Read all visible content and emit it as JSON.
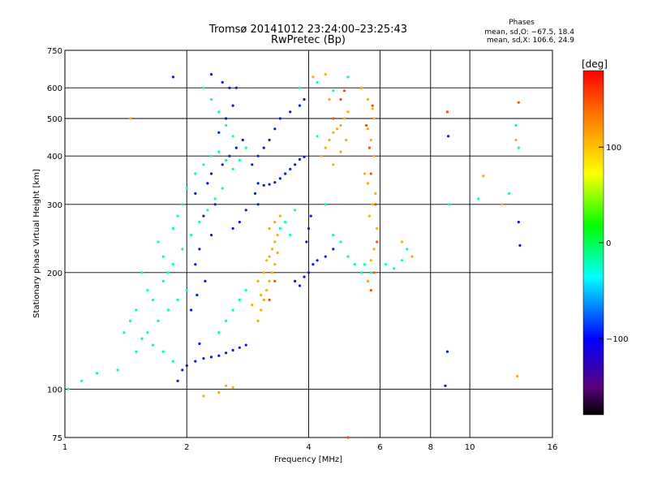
{
  "chart_data": {
    "type": "scatter",
    "title": "Tromsø 20141012 23:24:00–23:25:43",
    "subtitle": "RwPretec (Bp)",
    "xlabel": "Frequency [MHz]",
    "ylabel": "Stationary phase Virtual Height [km]",
    "x_scale": "log",
    "y_scale": "log",
    "xlim": [
      1,
      16
    ],
    "ylim": [
      75,
      750
    ],
    "x_ticks": [
      "1",
      "2",
      "4",
      "6",
      "8",
      "10",
      "16"
    ],
    "y_ticks": [
      "75",
      "100",
      "200",
      "300",
      "400",
      "500",
      "600",
      "750"
    ],
    "grid": true,
    "legend_position": "top-right",
    "phases_legend": {
      "title": "Phases",
      "o_line": "mean, sd,O: −67.5, 18.4",
      "x_line": "mean, sd,X: 106.6, 24.9"
    },
    "colorbar": {
      "label": "[deg]",
      "ticks": [
        "100",
        "0",
        "−100"
      ],
      "range": [
        -180,
        180
      ]
    },
    "series": [
      {
        "color_value": -95,
        "points": [
          [
            1.9,
            105
          ],
          [
            1.95,
            112
          ],
          [
            2.0,
            115
          ],
          [
            2.1,
            118
          ],
          [
            2.2,
            120
          ],
          [
            2.3,
            121
          ],
          [
            2.4,
            122
          ],
          [
            2.5,
            124
          ],
          [
            2.6,
            126
          ],
          [
            2.7,
            128
          ],
          [
            2.8,
            130
          ],
          [
            2.15,
            131
          ],
          [
            2.05,
            160
          ],
          [
            2.12,
            175
          ],
          [
            2.22,
            190
          ],
          [
            2.1,
            210
          ],
          [
            2.15,
            230
          ],
          [
            2.3,
            250
          ],
          [
            2.2,
            280
          ],
          [
            2.35,
            300
          ],
          [
            2.1,
            320
          ],
          [
            2.25,
            340
          ],
          [
            2.3,
            360
          ],
          [
            2.45,
            380
          ],
          [
            2.55,
            400
          ],
          [
            2.65,
            420
          ],
          [
            2.75,
            440
          ],
          [
            2.4,
            460
          ],
          [
            2.5,
            500
          ],
          [
            2.6,
            540
          ],
          [
            2.55,
            600
          ],
          [
            2.45,
            620
          ],
          [
            3.0,
            340
          ],
          [
            3.1,
            336
          ],
          [
            3.2,
            338
          ],
          [
            3.3,
            342
          ],
          [
            3.4,
            350
          ],
          [
            3.5,
            360
          ],
          [
            3.6,
            370
          ],
          [
            3.7,
            380
          ],
          [
            3.8,
            392
          ],
          [
            3.9,
            398
          ],
          [
            2.9,
            380
          ],
          [
            3.0,
            400
          ],
          [
            3.1,
            420
          ],
          [
            3.2,
            440
          ],
          [
            3.3,
            470
          ],
          [
            3.4,
            500
          ],
          [
            3.6,
            520
          ],
          [
            3.8,
            540
          ],
          [
            3.9,
            560
          ],
          [
            4.0,
            200
          ],
          [
            4.1,
            210
          ],
          [
            4.2,
            215
          ],
          [
            4.4,
            220
          ],
          [
            4.6,
            230
          ],
          [
            4.0,
            260
          ],
          [
            4.05,
            280
          ],
          [
            3.7,
            190
          ],
          [
            3.8,
            185
          ],
          [
            3.9,
            195
          ],
          [
            3.95,
            240
          ],
          [
            3.0,
            300
          ],
          [
            2.7,
            270
          ],
          [
            2.6,
            260
          ],
          [
            2.8,
            290
          ],
          [
            2.95,
            320
          ],
          [
            1.85,
            640
          ],
          [
            2.3,
            650
          ],
          [
            2.65,
            600
          ],
          [
            8.8,
            125
          ],
          [
            8.7,
            102
          ],
          [
            8.85,
            450
          ],
          [
            13.2,
            270
          ],
          [
            13.3,
            235
          ]
        ]
      },
      {
        "color_value": -20,
        "points": [
          [
            1.02,
            100
          ],
          [
            1.1,
            105
          ],
          [
            1.2,
            110
          ],
          [
            1.35,
            112
          ],
          [
            1.5,
            125
          ],
          [
            1.6,
            140
          ],
          [
            1.7,
            150
          ],
          [
            1.8,
            160
          ],
          [
            1.9,
            170
          ],
          [
            2.0,
            180
          ],
          [
            1.8,
            200
          ],
          [
            1.75,
            220
          ],
          [
            1.7,
            240
          ],
          [
            1.85,
            260
          ],
          [
            1.9,
            280
          ],
          [
            1.95,
            300
          ],
          [
            2.0,
            330
          ],
          [
            2.1,
            360
          ],
          [
            2.2,
            380
          ],
          [
            2.3,
            400
          ],
          [
            2.4,
            410
          ],
          [
            2.5,
            390
          ],
          [
            2.6,
            370
          ],
          [
            2.7,
            390
          ],
          [
            2.8,
            420
          ],
          [
            2.6,
            450
          ],
          [
            2.5,
            480
          ],
          [
            2.4,
            520
          ],
          [
            2.3,
            560
          ],
          [
            2.2,
            600
          ],
          [
            1.6,
            180
          ],
          [
            1.55,
            200
          ],
          [
            1.65,
            170
          ],
          [
            1.75,
            190
          ],
          [
            1.85,
            210
          ],
          [
            1.95,
            230
          ],
          [
            2.05,
            250
          ],
          [
            2.15,
            270
          ],
          [
            2.25,
            290
          ],
          [
            2.35,
            310
          ],
          [
            2.45,
            330
          ],
          [
            1.5,
            160
          ],
          [
            1.45,
            150
          ],
          [
            1.4,
            140
          ],
          [
            1.55,
            135
          ],
          [
            1.65,
            130
          ],
          [
            1.75,
            125
          ],
          [
            1.85,
            118
          ],
          [
            2.4,
            140
          ],
          [
            2.5,
            150
          ],
          [
            2.6,
            160
          ],
          [
            2.7,
            170
          ],
          [
            2.8,
            180
          ],
          [
            3.4,
            260
          ],
          [
            3.5,
            270
          ],
          [
            3.6,
            250
          ],
          [
            3.7,
            290
          ],
          [
            4.2,
            450
          ],
          [
            4.4,
            300
          ],
          [
            4.6,
            250
          ],
          [
            4.8,
            240
          ],
          [
            5.0,
            220
          ],
          [
            5.2,
            210
          ],
          [
            5.4,
            200
          ],
          [
            3.8,
            600
          ],
          [
            4.2,
            620
          ],
          [
            4.6,
            590
          ],
          [
            5.0,
            640
          ],
          [
            5.4,
            600
          ],
          [
            5.5,
            210
          ],
          [
            5.7,
            200
          ],
          [
            6.2,
            210
          ],
          [
            6.5,
            205
          ],
          [
            6.8,
            215
          ],
          [
            7.0,
            230
          ],
          [
            8.9,
            300
          ],
          [
            10.5,
            310
          ],
          [
            12.5,
            320
          ],
          [
            13.0,
            480
          ],
          [
            13.2,
            420
          ]
        ]
      },
      {
        "color_value": 110,
        "points": [
          [
            3.0,
            150
          ],
          [
            3.05,
            160
          ],
          [
            3.1,
            170
          ],
          [
            3.15,
            180
          ],
          [
            3.2,
            190
          ],
          [
            3.25,
            200
          ],
          [
            3.3,
            210
          ],
          [
            3.2,
            220
          ],
          [
            3.25,
            230
          ],
          [
            3.3,
            240
          ],
          [
            3.35,
            250
          ],
          [
            3.2,
            260
          ],
          [
            3.3,
            270
          ],
          [
            3.4,
            280
          ],
          [
            3.1,
            200
          ],
          [
            3.15,
            215
          ],
          [
            3.35,
            225
          ],
          [
            3.0,
            190
          ],
          [
            3.05,
            175
          ],
          [
            2.9,
            165
          ],
          [
            4.3,
            400
          ],
          [
            4.4,
            420
          ],
          [
            4.5,
            440
          ],
          [
            4.6,
            460
          ],
          [
            4.7,
            470
          ],
          [
            4.8,
            480
          ],
          [
            4.9,
            500
          ],
          [
            5.0,
            520
          ],
          [
            4.5,
            560
          ],
          [
            4.6,
            380
          ],
          [
            4.8,
            410
          ],
          [
            4.95,
            440
          ],
          [
            5.6,
            190
          ],
          [
            5.7,
            215
          ],
          [
            5.8,
            230
          ],
          [
            5.9,
            260
          ],
          [
            5.65,
            280
          ],
          [
            5.75,
            300
          ],
          [
            5.85,
            320
          ],
          [
            5.6,
            340
          ],
          [
            5.5,
            360
          ],
          [
            5.8,
            400
          ],
          [
            5.7,
            440
          ],
          [
            5.6,
            470
          ],
          [
            5.8,
            500
          ],
          [
            5.75,
            530
          ],
          [
            5.6,
            560
          ],
          [
            5.4,
            600
          ],
          [
            4.1,
            640
          ],
          [
            4.4,
            650
          ],
          [
            2.5,
            102
          ],
          [
            2.4,
            98
          ],
          [
            2.6,
            101
          ],
          [
            2.2,
            96
          ],
          [
            10.8,
            355
          ],
          [
            12.0,
            300
          ],
          [
            13.0,
            440
          ],
          [
            13.1,
            108
          ],
          [
            7.2,
            220
          ],
          [
            6.8,
            240
          ],
          [
            1.45,
            500
          ]
        ]
      },
      {
        "color_value": 150,
        "points": [
          [
            5.7,
            180
          ],
          [
            5.8,
            200
          ],
          [
            5.9,
            240
          ],
          [
            5.85,
            300
          ],
          [
            5.7,
            360
          ],
          [
            5.65,
            420
          ],
          [
            5.55,
            480
          ],
          [
            5.75,
            540
          ],
          [
            4.6,
            500
          ],
          [
            4.8,
            560
          ],
          [
            4.9,
            590
          ],
          [
            3.3,
            190
          ],
          [
            3.2,
            170
          ],
          [
            5.0,
            75
          ],
          [
            8.8,
            520
          ],
          [
            13.2,
            550
          ]
        ]
      }
    ]
  }
}
